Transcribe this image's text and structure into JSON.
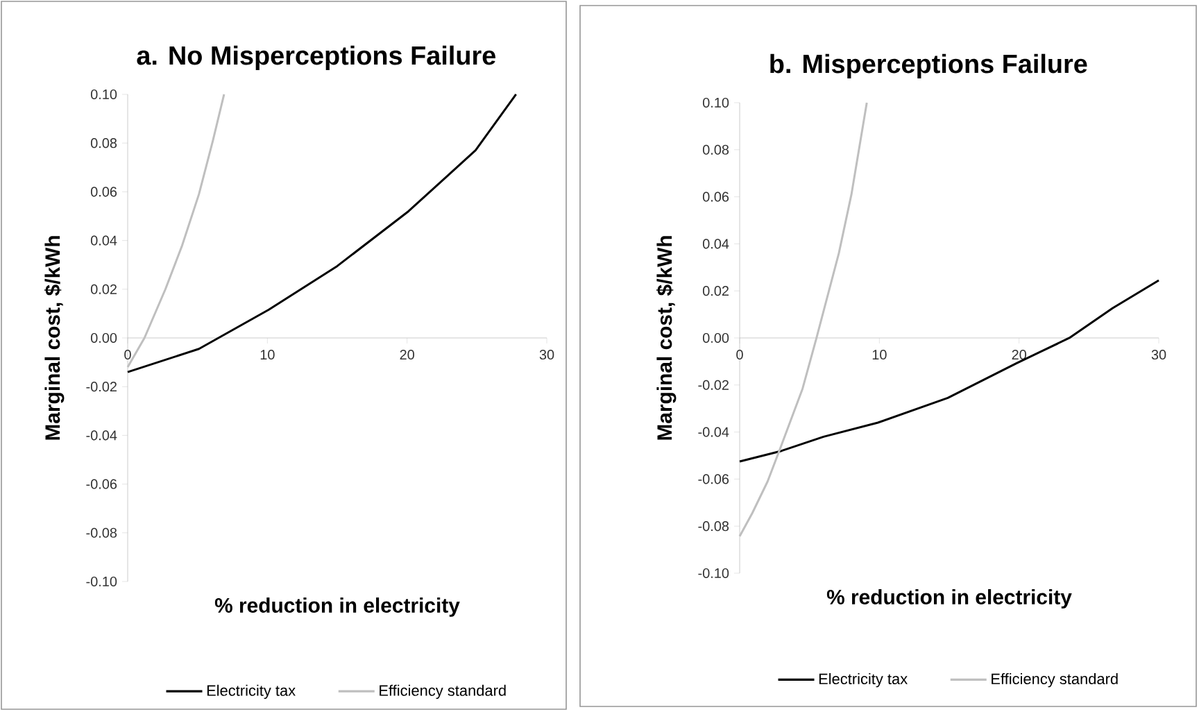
{
  "chart_data": [
    {
      "type": "line",
      "title": "a. No Misperceptions Failure",
      "xlabel": "% reduction in electricity",
      "ylabel": "Marginal cost, $/kWh",
      "xlim": [
        0,
        30
      ],
      "ylim": [
        -0.1,
        0.1
      ],
      "xticks": [
        0,
        10,
        20,
        30
      ],
      "yticks": [
        {
          "value": -0.1,
          "label": "-0.10"
        },
        {
          "value": -0.08,
          "label": "-0.08"
        },
        {
          "value": -0.06,
          "label": "-0.06"
        },
        {
          "value": -0.04,
          "label": "-0.04"
        },
        {
          "value": -0.02,
          "label": "-0.02"
        },
        {
          "value": 0,
          "label": "0.00"
        },
        {
          "value": 0.02,
          "label": "0.02"
        },
        {
          "value": 0.04,
          "label": "0.04"
        },
        {
          "value": 0.06,
          "label": "0.06"
        },
        {
          "value": 0.08,
          "label": "0.08"
        },
        {
          "value": 0.1,
          "label": "0.10"
        }
      ],
      "legend": "bottom",
      "series": [
        {
          "name": "Electricity tax",
          "color": "#000000",
          "x": [
            0,
            5.1,
            10.1,
            15,
            20.1,
            24.9,
            27.8
          ],
          "values": [
            -0.014,
            -0.0045,
            0.0116,
            0.0295,
            0.052,
            0.077,
            0.1
          ]
        },
        {
          "name": "Efficiency standard",
          "color": "#bfbfbf",
          "x": [
            0,
            1.2,
            2.7,
            3.9,
            5.1,
            6.1,
            6.9
          ],
          "values": [
            -0.012,
            0,
            0.02,
            0.038,
            0.059,
            0.081,
            0.1
          ]
        }
      ]
    },
    {
      "type": "line",
      "title": "b. Misperceptions Failure",
      "xlabel": "% reduction in electricity",
      "ylabel": "Marginal cost, $/kWh",
      "xlim": [
        0,
        30
      ],
      "ylim": [
        -0.1,
        0.1
      ],
      "xticks": [
        0,
        10,
        20,
        30
      ],
      "yticks": [
        {
          "value": -0.1,
          "label": "-0.10"
        },
        {
          "value": -0.08,
          "label": "-0.08"
        },
        {
          "value": -0.06,
          "label": "-0.06"
        },
        {
          "value": -0.04,
          "label": "-0.04"
        },
        {
          "value": -0.02,
          "label": "-0.02"
        },
        {
          "value": 0,
          "label": "0.00"
        },
        {
          "value": 0.02,
          "label": "0.02"
        },
        {
          "value": 0.04,
          "label": "0.04"
        },
        {
          "value": 0.06,
          "label": "0.06"
        },
        {
          "value": 0.08,
          "label": "0.08"
        },
        {
          "value": 0.1,
          "label": "0.10"
        }
      ],
      "legend": "bottom",
      "series": [
        {
          "name": "Electricity tax",
          "color": "#000000",
          "x": [
            0,
            3,
            6,
            9.9,
            14.9,
            19.8,
            23.6,
            26.7,
            30
          ],
          "values": [
            -0.0525,
            -0.048,
            -0.042,
            -0.036,
            -0.0255,
            -0.0108,
            0,
            0.0127,
            0.0245
          ]
        },
        {
          "name": "Efficiency standard",
          "color": "#bfbfbf",
          "x": [
            0,
            0.9,
            2,
            2.9,
            4.5,
            5.5,
            7.1,
            8,
            9.1
          ],
          "values": [
            -0.0843,
            -0.0745,
            -0.061,
            -0.047,
            -0.0216,
            0,
            0.036,
            0.061,
            0.1
          ]
        }
      ]
    }
  ]
}
